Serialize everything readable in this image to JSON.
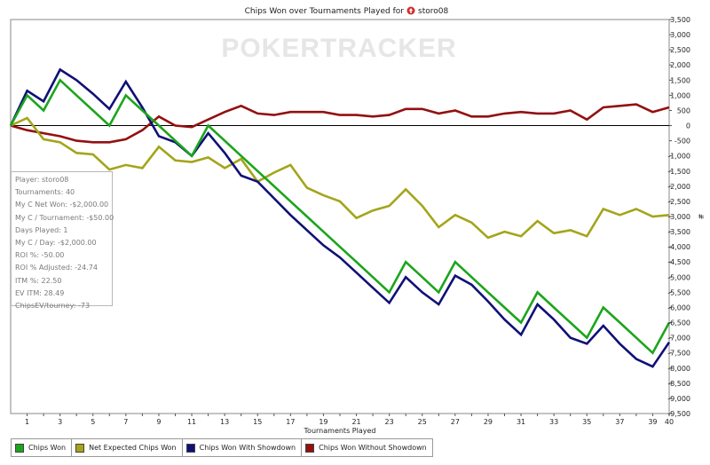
{
  "chart_data": {
    "type": "line",
    "title": "Chips Won over Tournaments Played for",
    "player": "storo08",
    "xlabel": "Tournaments Played",
    "ylabel": "#",
    "watermark": "POKERTRACKER",
    "xlim": [
      0,
      40
    ],
    "ylim": [
      -9500,
      3500
    ],
    "x_ticks": [
      1,
      3,
      5,
      7,
      9,
      11,
      13,
      15,
      17,
      19,
      21,
      23,
      25,
      27,
      29,
      31,
      33,
      35,
      37,
      39,
      40
    ],
    "y_ticks": [
      3500,
      3000,
      2500,
      2000,
      1500,
      1000,
      500,
      0,
      -500,
      -1000,
      -1500,
      -2000,
      -2500,
      -3000,
      -3500,
      -4000,
      -4500,
      -5000,
      -5500,
      -6000,
      -6500,
      -7000,
      -7500,
      -8000,
      -8500,
      -9000,
      -9500
    ],
    "y_tick_labels": [
      "3,500",
      "3,000",
      "2,500",
      "2,000",
      "1,500",
      "1,000",
      "500",
      "0",
      "-500",
      "-1,000",
      "-1,500",
      "-2,000",
      "-2,500",
      "-3,000",
      "-3,500",
      "-4,000",
      "-4,500",
      "-5,000",
      "-5,500",
      "-6,000",
      "-6,500",
      "-7,000",
      "-7,500",
      "-8,000",
      "-8,500",
      "-9,000",
      "-9,500"
    ],
    "grid": false,
    "x": [
      0,
      1,
      2,
      3,
      4,
      5,
      6,
      7,
      8,
      9,
      10,
      11,
      12,
      13,
      14,
      15,
      16,
      17,
      18,
      19,
      20,
      21,
      22,
      23,
      24,
      25,
      26,
      27,
      28,
      29,
      30,
      31,
      32,
      33,
      34,
      35,
      36,
      37,
      38,
      39,
      40
    ],
    "series": [
      {
        "name": "Chips Won",
        "color": "#1ca51c",
        "values": [
          0,
          1000,
          500,
          1500,
          1000,
          500,
          0,
          1000,
          500,
          0,
          -500,
          -1000,
          0,
          -500,
          -1000,
          -1500,
          -2000,
          -2500,
          -3000,
          -3500,
          -4000,
          -4500,
          -5000,
          -5500,
          -4500,
          -5000,
          -5500,
          -4500,
          -5000,
          -5500,
          -6000,
          -6500,
          -5500,
          -6000,
          -6500,
          -7000,
          -6000,
          -6500,
          -7000,
          -7500,
          -6500
        ]
      },
      {
        "name": "Net Expected Chips Won",
        "color": "#a3a51a",
        "values": [
          0,
          250,
          -450,
          -550,
          -900,
          -950,
          -1450,
          -1300,
          -1400,
          -700,
          -1150,
          -1200,
          -1050,
          -1400,
          -1100,
          -1850,
          -1550,
          -1300,
          -2050,
          -2300,
          -2500,
          -3050,
          -2800,
          -2650,
          -2100,
          -2650,
          -3350,
          -2950,
          -3200,
          -3700,
          -3500,
          -3650,
          -3150,
          -3550,
          -3450,
          -3650,
          -2750,
          -2950,
          -2750,
          -3000,
          -2950
        ]
      },
      {
        "name": "Chips Won With Showdown",
        "color": "#101077",
        "values": [
          0,
          1150,
          800,
          1850,
          1500,
          1050,
          550,
          1450,
          600,
          -350,
          -550,
          -1000,
          -250,
          -900,
          -1650,
          -1850,
          -2400,
          -2950,
          -3450,
          -3950,
          -4350,
          -4850,
          -5350,
          -5850,
          -5000,
          -5500,
          -5900,
          -4950,
          -5250,
          -5800,
          -6400,
          -6900,
          -5900,
          -6400,
          -7000,
          -7200,
          -6600,
          -7200,
          -7700,
          -7950,
          -7150
        ]
      },
      {
        "name": "Chips Won Without Showdown",
        "color": "#931010",
        "values": [
          0,
          -150,
          -250,
          -350,
          -500,
          -550,
          -550,
          -450,
          -150,
          300,
          0,
          -50,
          200,
          450,
          650,
          400,
          350,
          450,
          450,
          450,
          350,
          350,
          300,
          350,
          550,
          550,
          400,
          500,
          300,
          300,
          400,
          450,
          400,
          400,
          500,
          200,
          600,
          650,
          700,
          450,
          600
        ]
      }
    ]
  },
  "stats": [
    "Player: storo08",
    "Tournaments: 40",
    "My C Net Won: -$2,000.00",
    "My C / Tournament: -$50.00",
    "Days Played: 1",
    "My C / Day: -$2,000.00",
    "ROI %: -50.00",
    "ROI % Adjusted: -24.74",
    "ITM %: 22.50",
    "EV ITM: 28.49",
    "ChipsEV/tourney: -73"
  ]
}
